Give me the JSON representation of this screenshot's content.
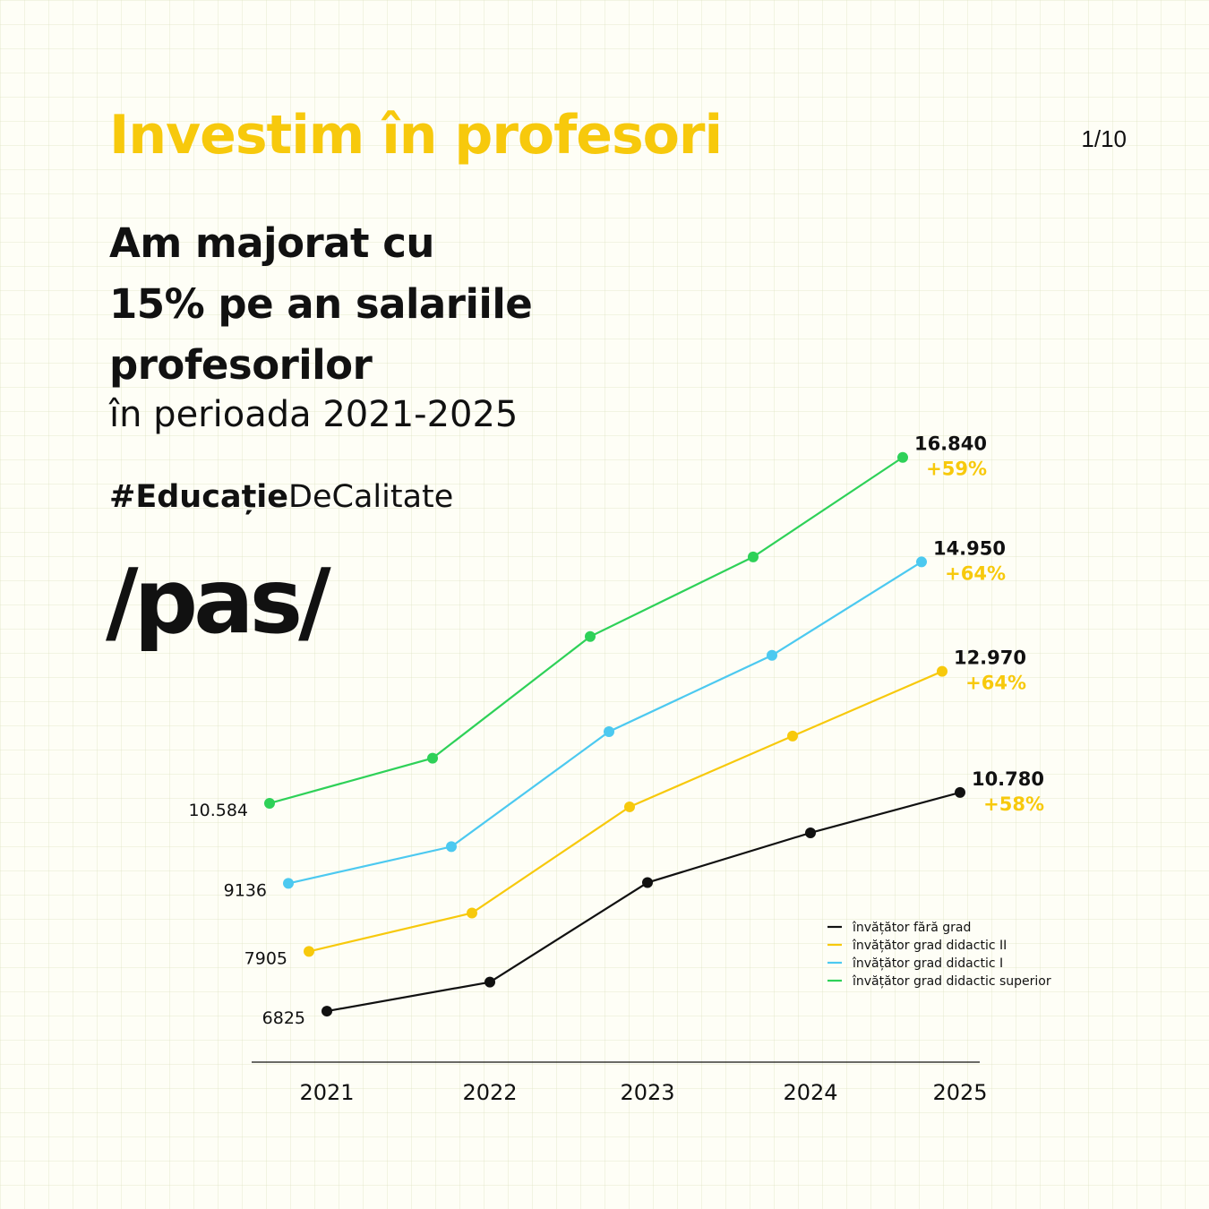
{
  "header": {
    "title": "Investim în profesori",
    "page_counter": "1/10"
  },
  "content": {
    "headline_lines": [
      "Am majorat cu",
      "15% pe an salariile",
      "profesorilor"
    ],
    "period": "în perioada 2021-2025",
    "hashtag_bold": "#Educație",
    "hashtag_rest": "DeCalitate",
    "logo": "/pas/"
  },
  "colors": {
    "brand_yellow": "#f7c90c",
    "text": "#111111",
    "series": [
      "#111111",
      "#f7c90c",
      "#4cc9f0",
      "#2ed158"
    ]
  },
  "chart_data": {
    "type": "line",
    "title": "",
    "xlabel": "",
    "ylabel": "",
    "categories": [
      "2021",
      "2022",
      "2023",
      "2024",
      "2025"
    ],
    "ylim": [
      6000,
      17500
    ],
    "grid": false,
    "legend": "bottom-right",
    "series": [
      {
        "name": "învățător fără grad",
        "values": [
          6825,
          7350,
          9150,
          10050,
          10780
        ],
        "start_label": "6825",
        "end_label": "10.780",
        "change": "+58%"
      },
      {
        "name": "învățător grad didactic II",
        "values": [
          7905,
          8600,
          10520,
          11800,
          12970
        ],
        "start_label": "7905",
        "end_label": "12.970",
        "change": "+64%"
      },
      {
        "name": "învățător grad didactic I",
        "values": [
          9136,
          9800,
          11880,
          13260,
          14950
        ],
        "start_label": "9136",
        "end_label": "14.950",
        "change": "+64%"
      },
      {
        "name": "învățător grad didactic superior",
        "values": [
          10584,
          11400,
          13600,
          15040,
          16840
        ],
        "start_label": "10.584",
        "end_label": "16.840",
        "change": "+59%"
      }
    ]
  }
}
